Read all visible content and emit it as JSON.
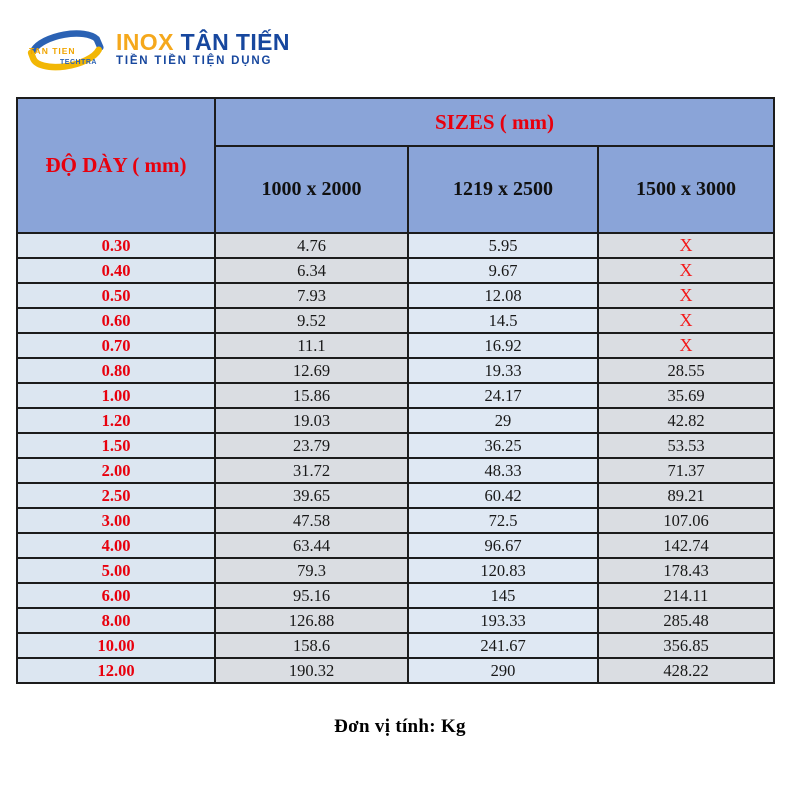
{
  "logo": {
    "icon_top_text": "TAN TIEN",
    "icon_bottom_text": "TECHTRA",
    "title_inox": "INOX",
    "title_tan_tien": "TÂN TIẾN",
    "tagline": "TIỀN TIỀN TIỆN DỤNG"
  },
  "table": {
    "corner_header": "ĐỘ DÀY ( mm)",
    "sizes_header": "SIZES ( mm)",
    "size_columns": [
      "1000 x 2000",
      "1219 x 2500",
      "1500 x 3000"
    ],
    "rows": [
      {
        "thickness": "0.30",
        "values": [
          "4.76",
          "5.95",
          "X"
        ]
      },
      {
        "thickness": "0.40",
        "values": [
          "6.34",
          "9.67",
          "X"
        ]
      },
      {
        "thickness": "0.50",
        "values": [
          "7.93",
          "12.08",
          "X"
        ]
      },
      {
        "thickness": "0.60",
        "values": [
          "9.52",
          "14.5",
          "X"
        ]
      },
      {
        "thickness": "0.70",
        "values": [
          "11.1",
          "16.92",
          "X"
        ]
      },
      {
        "thickness": "0.80",
        "values": [
          "12.69",
          "19.33",
          "28.55"
        ]
      },
      {
        "thickness": "1.00",
        "values": [
          "15.86",
          "24.17",
          "35.69"
        ]
      },
      {
        "thickness": "1.20",
        "values": [
          "19.03",
          "29",
          "42.82"
        ]
      },
      {
        "thickness": "1.50",
        "values": [
          "23.79",
          "36.25",
          "53.53"
        ]
      },
      {
        "thickness": "2.00",
        "values": [
          "31.72",
          "48.33",
          "71.37"
        ]
      },
      {
        "thickness": "2.50",
        "values": [
          "39.65",
          "60.42",
          "89.21"
        ]
      },
      {
        "thickness": "3.00",
        "values": [
          "47.58",
          "72.5",
          "107.06"
        ]
      },
      {
        "thickness": "4.00",
        "values": [
          "63.44",
          "96.67",
          "142.74"
        ]
      },
      {
        "thickness": "5.00",
        "values": [
          "79.3",
          "120.83",
          "178.43"
        ]
      },
      {
        "thickness": "6.00",
        "values": [
          "95.16",
          "145",
          "214.11"
        ]
      },
      {
        "thickness": "8.00",
        "values": [
          "126.88",
          "193.33",
          "285.48"
        ]
      },
      {
        "thickness": "10.00",
        "values": [
          "158.6",
          "241.67",
          "356.85"
        ]
      },
      {
        "thickness": "12.00",
        "values": [
          "190.32",
          "290",
          "428.22"
        ]
      }
    ]
  },
  "footer": {
    "note": "Đơn vị tính: Kg"
  },
  "colors": {
    "header_blue": "#8AA4D8",
    "light_blue_cell": "#DCE6F1",
    "light_blue_cell_alt": "#DFE8F3",
    "gray_cell": "#DADDE2",
    "table_border": "#1C1C1C",
    "red": "#E8000D",
    "x_red": "#F31B1C",
    "logo_yellow": "#F5A81C",
    "logo_blue": "#17479E",
    "text_black": "#111111"
  }
}
